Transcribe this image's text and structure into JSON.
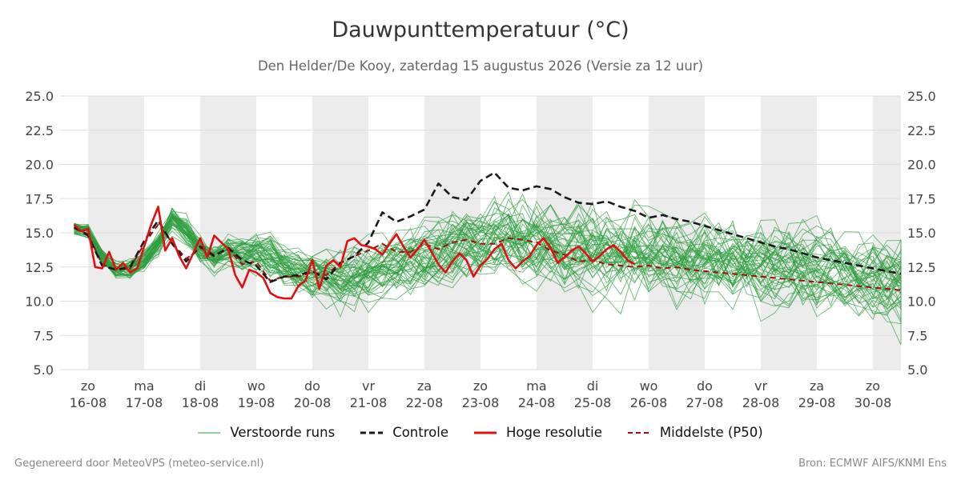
{
  "title": "Dauwpunttemperatuur (°C)",
  "subtitle": "Den Helder/De Kooy, zaterdag 15 augustus 2026 (Versie za 12 uur)",
  "footer": {
    "left": "Gegenereerd door MeteoVPS (meteo-service.nl)",
    "right": "Bron: ECMWF AIFS/KNMI Ens"
  },
  "colors": {
    "ensemble": "#2e9e3e",
    "control": "#1a1a1a",
    "hires": "#e01010",
    "median": "#a01010",
    "band": "#ececec",
    "grid": "#dddddd"
  },
  "legend": [
    {
      "label": "Verstoorde runs",
      "style": "ensemble"
    },
    {
      "label": "Controle",
      "style": "control"
    },
    {
      "label": "Hoge resolutie",
      "style": "hires"
    },
    {
      "label": "Middelste (P50)",
      "style": "median"
    }
  ],
  "chart_data": {
    "type": "line",
    "title": "Dauwpunttemperatuur (°C)",
    "ylim": [
      5.0,
      25.0
    ],
    "yticks": [
      "5.0",
      "7.5",
      "10.0",
      "12.5",
      "15.0",
      "17.5",
      "20.0",
      "22.5",
      "25.0"
    ],
    "xlim_hours": [
      -12,
      348
    ],
    "x_unit": "hours since 16-08 00:00",
    "day_ticks": [
      {
        "day": "zo",
        "date": "16-08"
      },
      {
        "day": "ma",
        "date": "17-08"
      },
      {
        "day": "di",
        "date": "18-08"
      },
      {
        "day": "wo",
        "date": "19-08"
      },
      {
        "day": "do",
        "date": "20-08"
      },
      {
        "day": "vr",
        "date": "21-08"
      },
      {
        "day": "za",
        "date": "22-08"
      },
      {
        "day": "zo",
        "date": "23-08"
      },
      {
        "day": "ma",
        "date": "24-08"
      },
      {
        "day": "di",
        "date": "25-08"
      },
      {
        "day": "wo",
        "date": "26-08"
      },
      {
        "day": "do",
        "date": "27-08"
      },
      {
        "day": "vr",
        "date": "28-08"
      },
      {
        "day": "za",
        "date": "29-08"
      },
      {
        "day": "zo",
        "date": "30-08"
      }
    ],
    "series": [
      {
        "name": "Hoge resolutie",
        "style": "hires",
        "x": [
          -6,
          -3,
          0,
          3,
          6,
          9,
          12,
          15,
          18,
          21,
          24,
          27,
          30,
          33,
          36,
          39,
          42,
          45,
          48,
          51,
          54,
          57,
          60,
          63,
          66,
          69,
          72,
          75,
          78,
          81,
          84,
          87,
          90,
          93,
          96,
          99,
          102,
          105,
          108,
          111,
          114,
          117,
          120,
          123,
          126,
          129,
          132,
          135,
          138,
          141,
          144,
          147,
          150,
          153,
          156,
          159,
          162,
          165,
          168,
          171,
          174,
          177,
          180,
          183,
          186,
          189,
          192,
          195,
          198,
          201,
          204,
          207,
          210,
          213,
          216,
          219,
          222,
          225,
          228,
          231,
          234
        ],
        "y": [
          15.6,
          15.1,
          15.3,
          12.5,
          12.4,
          13.6,
          12.3,
          12.8,
          12.1,
          12.4,
          14.0,
          15.6,
          16.9,
          13.7,
          14.6,
          13.3,
          12.4,
          13.5,
          14.6,
          13.2,
          14.8,
          14.3,
          13.8,
          11.9,
          11.0,
          12.3,
          12.1,
          11.7,
          10.6,
          10.3,
          10.2,
          10.2,
          11.1,
          11.5,
          13.0,
          10.9,
          12.6,
          13.0,
          12.5,
          14.4,
          14.6,
          14.1,
          14.0,
          13.8,
          13.4,
          14.2,
          14.9,
          14.0,
          13.2,
          13.8,
          14.5,
          13.6,
          12.7,
          12.1,
          12.9,
          13.5,
          13.0,
          11.8,
          12.6,
          13.1,
          13.8,
          14.2,
          13.0,
          12.4,
          12.9,
          13.3,
          14.1,
          14.6,
          13.9,
          12.8,
          13.2,
          13.7,
          14.0,
          13.5,
          12.9,
          13.3,
          13.8,
          14.1,
          13.6,
          13.0,
          12.7
        ]
      },
      {
        "name": "Controle",
        "style": "control",
        "x": [
          -6,
          0,
          6,
          12,
          18,
          24,
          30,
          36,
          42,
          48,
          54,
          60,
          66,
          72,
          78,
          84,
          90,
          96,
          102,
          108,
          114,
          120,
          126,
          132,
          138,
          144,
          150,
          156,
          162,
          168,
          174,
          180,
          186,
          192,
          198,
          204,
          210,
          216,
          222,
          228,
          234,
          240,
          246,
          252,
          258,
          264,
          270,
          276,
          282,
          288,
          294,
          300,
          306,
          312,
          318,
          324,
          330,
          336,
          342,
          348
        ],
        "y": [
          15.4,
          14.8,
          12.6,
          12.3,
          12.5,
          14.4,
          15.9,
          14.2,
          12.9,
          14.0,
          13.3,
          13.9,
          13.0,
          12.6,
          11.4,
          11.8,
          11.9,
          12.2,
          11.6,
          12.8,
          13.3,
          14.3,
          16.5,
          15.8,
          16.2,
          16.7,
          18.6,
          17.6,
          17.4,
          18.8,
          19.4,
          18.3,
          18.1,
          18.4,
          18.2,
          17.6,
          17.2,
          17.1,
          17.3,
          16.9,
          16.6,
          16.1,
          16.3,
          16.0,
          15.8,
          15.5,
          15.2,
          14.9,
          14.6,
          14.3,
          14.0,
          13.8,
          13.5,
          13.2,
          13.0,
          12.8,
          12.6,
          12.4,
          12.2,
          12.0
        ]
      },
      {
        "name": "Middelste (P50)",
        "style": "median",
        "x": [
          -6,
          0,
          6,
          12,
          18,
          24,
          30,
          36,
          42,
          48,
          54,
          60,
          66,
          72,
          78,
          84,
          90,
          96,
          102,
          108,
          114,
          120,
          126,
          132,
          138,
          144,
          150,
          156,
          162,
          168,
          174,
          180,
          186,
          192,
          198,
          204,
          210,
          216,
          222,
          228,
          234,
          240,
          246,
          252,
          258,
          264,
          270,
          276,
          282,
          288,
          294,
          300,
          306,
          312,
          318,
          324,
          330,
          336,
          342,
          348
        ],
        "y": [
          15.4,
          14.9,
          12.7,
          12.3,
          12.4,
          14.2,
          15.6,
          14.3,
          13.1,
          13.9,
          13.4,
          13.8,
          12.7,
          12.9,
          11.5,
          11.8,
          11.8,
          12.1,
          11.9,
          12.8,
          13.3,
          13.7,
          14.2,
          13.6,
          13.6,
          14.2,
          13.8,
          14.3,
          14.5,
          14.2,
          14.2,
          14.6,
          14.5,
          14.3,
          13.7,
          13.4,
          12.9,
          13.0,
          12.7,
          12.6,
          12.5,
          12.6,
          12.4,
          12.5,
          12.3,
          12.2,
          12.1,
          12.0,
          11.9,
          11.8,
          11.7,
          11.6,
          11.5,
          11.4,
          11.3,
          11.2,
          11.1,
          11.0,
          10.9,
          10.8
        ]
      }
    ],
    "ensemble_base": [
      15.3,
      15.1,
      13.2,
      12.3,
      12.4,
      13.0,
      14.2,
      16.0,
      15.1,
      13.8,
      13.2,
      13.9,
      13.5,
      13.6,
      13.2,
      12.8,
      12.3,
      12.0,
      11.8,
      11.6,
      11.8,
      12.0,
      12.3,
      12.6,
      13.0,
      13.3,
      13.6,
      14.0,
      14.3,
      14.6,
      14.8,
      14.7,
      14.5,
      14.3,
      14.2,
      14.0,
      13.9,
      13.8,
      13.7,
      13.5,
      13.4,
      13.3,
      13.2,
      13.1,
      13.0,
      12.9,
      12.8,
      12.7,
      12.6,
      12.5,
      12.4,
      12.3,
      12.2,
      12.1,
      12.0,
      11.9,
      11.8,
      11.7,
      11.6,
      11.5,
      11.4
    ],
    "ensemble_spread": [
      0.6,
      0.6,
      0.7,
      0.8,
      0.8,
      0.9,
      1.0,
      1.1,
      1.2,
      1.2,
      1.3,
      1.4,
      1.5,
      1.6,
      1.7,
      1.8,
      1.9,
      2.0,
      2.1,
      2.2,
      2.3,
      2.4,
      2.5,
      2.6,
      2.7,
      2.8,
      2.9,
      3.0,
      3.1,
      3.2,
      3.3,
      3.3,
      3.3,
      3.3,
      3.3,
      3.3,
      3.3,
      3.3,
      3.3,
      3.3,
      3.3,
      3.3,
      3.3,
      3.3,
      3.3,
      3.3,
      3.3,
      3.3,
      3.3,
      3.3,
      3.3,
      3.3,
      3.3,
      3.3,
      3.3,
      3.3,
      3.3,
      3.3,
      3.3,
      3.3,
      3.3
    ],
    "ensemble_members": 50
  }
}
